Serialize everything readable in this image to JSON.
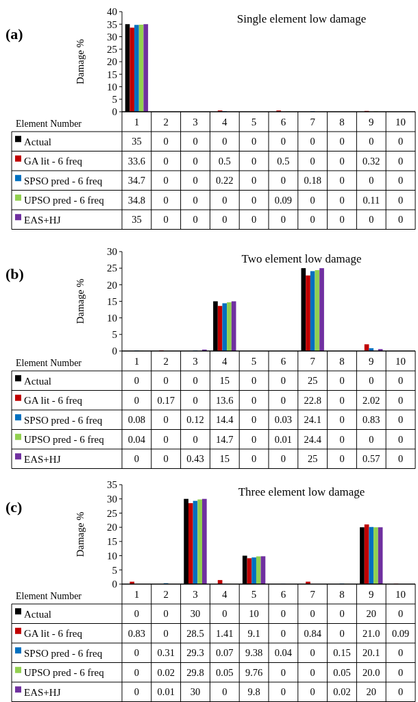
{
  "chart_data": [
    {
      "type": "bar",
      "title": "Single element low damage",
      "ylabel": "Damage %",
      "xlabel": "Element Number",
      "annotations": [
        "(a)"
      ],
      "categories": [
        "1",
        "2",
        "3",
        "4",
        "5",
        "6",
        "7",
        "8",
        "9",
        "10"
      ],
      "ylim": [
        0,
        40
      ],
      "yticks": [
        0,
        5,
        10,
        15,
        20,
        25,
        30,
        35,
        40
      ],
      "legend": "bottom",
      "series": [
        {
          "name": "Actual",
          "color": "#000000",
          "values": [
            35,
            0,
            0,
            0,
            0,
            0,
            0,
            0,
            0,
            0
          ],
          "value_labels": [
            "35",
            "0",
            "0",
            "0",
            "0",
            "0",
            "0",
            "0",
            "0",
            "0"
          ]
        },
        {
          "name": "GA lit - 6 freq",
          "color": "#c00000",
          "values": [
            33.6,
            0,
            0,
            0.5,
            0,
            0.5,
            0,
            0,
            0.32,
            0
          ],
          "value_labels": [
            "33.6",
            "0",
            "0",
            "0.5",
            "0",
            "0.5",
            "0",
            "0",
            "0.32",
            "0"
          ]
        },
        {
          "name": "SPSO pred - 6 freq",
          "color": "#0070c0",
          "values": [
            34.7,
            0,
            0,
            0.22,
            0,
            0,
            0.18,
            0,
            0,
            0
          ],
          "value_labels": [
            "34.7",
            "0",
            "0",
            "0.22",
            "0",
            "0",
            "0.18",
            "0",
            "0",
            "0"
          ]
        },
        {
          "name": "UPSO pred - 6 freq",
          "color": "#92d050",
          "values": [
            34.8,
            0,
            0,
            0,
            0,
            0.09,
            0,
            0,
            0.11,
            0
          ],
          "value_labels": [
            "34.8",
            "0",
            "0",
            "0",
            "0",
            "0.09",
            "0",
            "0",
            "0.11",
            "0"
          ]
        },
        {
          "name": "EAS+HJ",
          "color": "#7030a0",
          "values": [
            35,
            0,
            0,
            0,
            0,
            0,
            0,
            0,
            0,
            0
          ],
          "value_labels": [
            "35",
            "0",
            "0",
            "0",
            "0",
            "0",
            "0",
            "0",
            "0",
            "0"
          ]
        }
      ]
    },
    {
      "type": "bar",
      "title": "Two element low damage",
      "ylabel": "Damage %",
      "xlabel": "Element Number",
      "annotations": [
        "(b)"
      ],
      "categories": [
        "1",
        "2",
        "3",
        "4",
        "5",
        "6",
        "7",
        "8",
        "9",
        "10"
      ],
      "ylim": [
        0,
        30
      ],
      "yticks": [
        0,
        5,
        10,
        15,
        20,
        25,
        30
      ],
      "legend": "bottom",
      "series": [
        {
          "name": "Actual",
          "color": "#000000",
          "values": [
            0,
            0,
            0,
            15,
            0,
            0,
            25,
            0,
            0,
            0
          ],
          "value_labels": [
            "0",
            "0",
            "0",
            "15",
            "0",
            "0",
            "25",
            "0",
            "0",
            "0"
          ]
        },
        {
          "name": "GA lit - 6 freq",
          "color": "#c00000",
          "values": [
            0,
            0.17,
            0,
            13.6,
            0,
            0,
            22.8,
            0,
            2.02,
            0
          ],
          "value_labels": [
            "0",
            "0.17",
            "0",
            "13.6",
            "0",
            "0",
            "22.8",
            "0",
            "2.02",
            "0"
          ]
        },
        {
          "name": "SPSO pred - 6 freq",
          "color": "#0070c0",
          "values": [
            0.08,
            0,
            0.12,
            14.4,
            0,
            0.03,
            24.1,
            0,
            0.83,
            0
          ],
          "value_labels": [
            "0.08",
            "0",
            "0.12",
            "14.4",
            "0",
            "0.03",
            "24.1",
            "0",
            "0.83",
            "0"
          ]
        },
        {
          "name": "UPSO pred - 6 freq",
          "color": "#92d050",
          "values": [
            0.04,
            0,
            0,
            14.7,
            0,
            0.01,
            24.4,
            0,
            0,
            0
          ],
          "value_labels": [
            "0.04",
            "0",
            "0",
            "14.7",
            "0",
            "0.01",
            "24.4",
            "0",
            "0",
            "0"
          ]
        },
        {
          "name": "EAS+HJ",
          "color": "#7030a0",
          "values": [
            0,
            0,
            0.43,
            15,
            0,
            0,
            25,
            0,
            0.57,
            0
          ],
          "value_labels": [
            "0",
            "0",
            "0.43",
            "15",
            "0",
            "0",
            "25",
            "0",
            "0.57",
            "0"
          ]
        }
      ]
    },
    {
      "type": "bar",
      "title": "Three element low damage",
      "ylabel": "Damage %",
      "xlabel": "Element Number",
      "annotations": [
        "(c)"
      ],
      "categories": [
        "1",
        "2",
        "3",
        "4",
        "5",
        "6",
        "7",
        "8",
        "9",
        "10"
      ],
      "ylim": [
        0,
        35
      ],
      "yticks": [
        0,
        5,
        10,
        15,
        20,
        25,
        30,
        35
      ],
      "legend": "bottom",
      "series": [
        {
          "name": "Actual",
          "color": "#000000",
          "values": [
            0,
            0,
            30,
            0,
            10,
            0,
            0,
            0,
            20,
            0
          ],
          "value_labels": [
            "0",
            "0",
            "30",
            "0",
            "10",
            "0",
            "0",
            "0",
            "20",
            "0"
          ]
        },
        {
          "name": "GA lit - 6 freq",
          "color": "#c00000",
          "values": [
            0.83,
            0,
            28.5,
            1.41,
            9.1,
            0,
            0.84,
            0,
            21.0,
            0.09
          ],
          "value_labels": [
            "0.83",
            "0",
            "28.5",
            "1.41",
            "9.1",
            "0",
            "0.84",
            "0",
            "21.0",
            "0.09"
          ]
        },
        {
          "name": "SPSO pred - 6 freq",
          "color": "#0070c0",
          "values": [
            0,
            0.31,
            29.3,
            0.07,
            9.38,
            0.04,
            0,
            0.15,
            20.1,
            0
          ],
          "value_labels": [
            "0",
            "0.31",
            "29.3",
            "0.07",
            "9.38",
            "0.04",
            "0",
            "0.15",
            "20.1",
            "0"
          ]
        },
        {
          "name": "UPSO pred - 6 freq",
          "color": "#92d050",
          "values": [
            0,
            0.02,
            29.8,
            0.05,
            9.76,
            0,
            0,
            0.05,
            20.0,
            0
          ],
          "value_labels": [
            "0",
            "0.02",
            "29.8",
            "0.05",
            "9.76",
            "0",
            "0",
            "0.05",
            "20.0",
            "0"
          ]
        },
        {
          "name": "EAS+HJ",
          "color": "#7030a0",
          "values": [
            0,
            0.01,
            30,
            0,
            9.8,
            0,
            0,
            0.02,
            20,
            0
          ],
          "value_labels": [
            "0",
            "0.01",
            "30",
            "0",
            "9.8",
            "0",
            "0",
            "0.02",
            "20",
            "0"
          ]
        }
      ]
    }
  ]
}
